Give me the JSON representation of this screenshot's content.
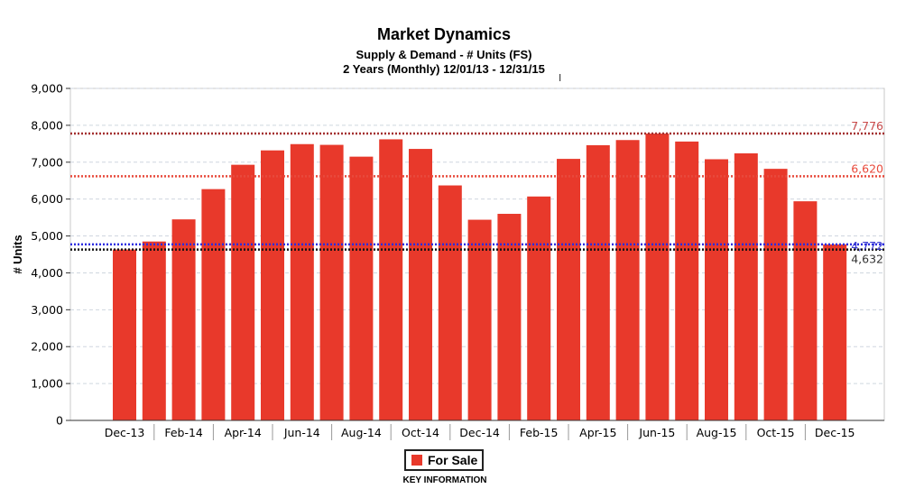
{
  "chart_data": {
    "type": "bar",
    "title": "Market Dynamics",
    "subtitle": "Supply & Demand - # Units (FS)",
    "subtitle2": "2 Years (Monthly) 12/01/13 - 12/31/15",
    "xlabel": "",
    "ylabel": "# Units",
    "ylim": [
      0,
      9000
    ],
    "yticks": [
      0,
      1000,
      2000,
      3000,
      4000,
      5000,
      6000,
      7000,
      8000,
      9000
    ],
    "ytick_labels": [
      "0",
      "1,000",
      "2,000",
      "3,000",
      "4,000",
      "5,000",
      "6,000",
      "7,000",
      "8,000",
      "9,000"
    ],
    "grid": true,
    "categories": [
      "Dec-13",
      "Jan-14",
      "Feb-14",
      "Mar-14",
      "Apr-14",
      "May-14",
      "Jun-14",
      "Jul-14",
      "Aug-14",
      "Sep-14",
      "Oct-14",
      "Nov-14",
      "Dec-14",
      "Jan-15",
      "Feb-15",
      "Mar-15",
      "Apr-15",
      "May-15",
      "Jun-15",
      "Jul-15",
      "Aug-15",
      "Sep-15",
      "Oct-15",
      "Nov-15",
      "Dec-15"
    ],
    "x_tick_labels": [
      "Dec-13",
      "Feb-14",
      "Apr-14",
      "Jun-14",
      "Aug-14",
      "Oct-14",
      "Dec-14",
      "Feb-15",
      "Apr-15",
      "Jun-15",
      "Aug-15",
      "Oct-15",
      "Dec-15"
    ],
    "series": [
      {
        "name": "For Sale",
        "color": "#e8392b",
        "values": [
          4632,
          4850,
          5450,
          6270,
          6930,
          7320,
          7490,
          7470,
          7150,
          7620,
          7360,
          6370,
          5440,
          5600,
          6070,
          7090,
          7460,
          7600,
          7776,
          7560,
          7080,
          7240,
          6820,
          5940,
          4772
        ]
      }
    ],
    "reference_lines": [
      {
        "value": 7776,
        "label": "7,776",
        "color": "#a33030",
        "label_color": "#c94a4a"
      },
      {
        "value": 6620,
        "label": "6,620",
        "color": "#e84a3c",
        "label_color": "#e84a3c"
      },
      {
        "value": 4772,
        "label": "4,772",
        "color": "#2b2be0",
        "label_color": "#3b3bd0"
      },
      {
        "value": 4632,
        "label": "4,632",
        "color": "#111111",
        "label_color": "#333333"
      }
    ],
    "legend": {
      "position": "bottom",
      "entries": [
        "For Sale"
      ]
    },
    "key_label": "KEY INFORMATION"
  }
}
